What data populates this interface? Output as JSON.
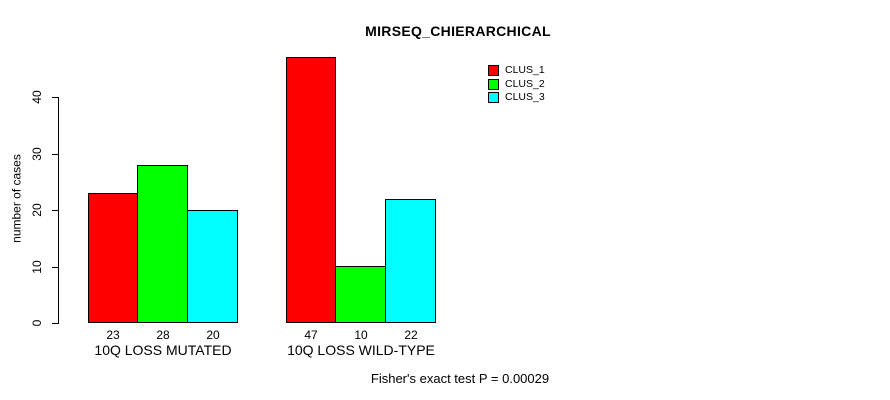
{
  "chart_data": {
    "type": "bar",
    "title": "MIRSEQ_CHIERARCHICAL",
    "ylabel": "number of cases",
    "xlabel": "",
    "ylim": [
      0,
      40
    ],
    "yticks": [
      0,
      10,
      20,
      30,
      40
    ],
    "grid": false,
    "legend_position": "top-right",
    "categories": [
      "10Q LOSS MUTATED",
      "10Q LOSS WILD-TYPE"
    ],
    "series": [
      {
        "name": "CLUS_1",
        "color": "#ff0000",
        "values": [
          23,
          47
        ]
      },
      {
        "name": "CLUS_2",
        "color": "#00ff00",
        "values": [
          28,
          10
        ]
      },
      {
        "name": "CLUS_3",
        "color": "#00ffff",
        "values": [
          20,
          22
        ]
      }
    ],
    "bar_value_labels": [
      [
        "23",
        "28",
        "20"
      ],
      [
        "47",
        "10",
        "22"
      ]
    ],
    "footer": "Fisher's exact test P = 0.00029"
  }
}
